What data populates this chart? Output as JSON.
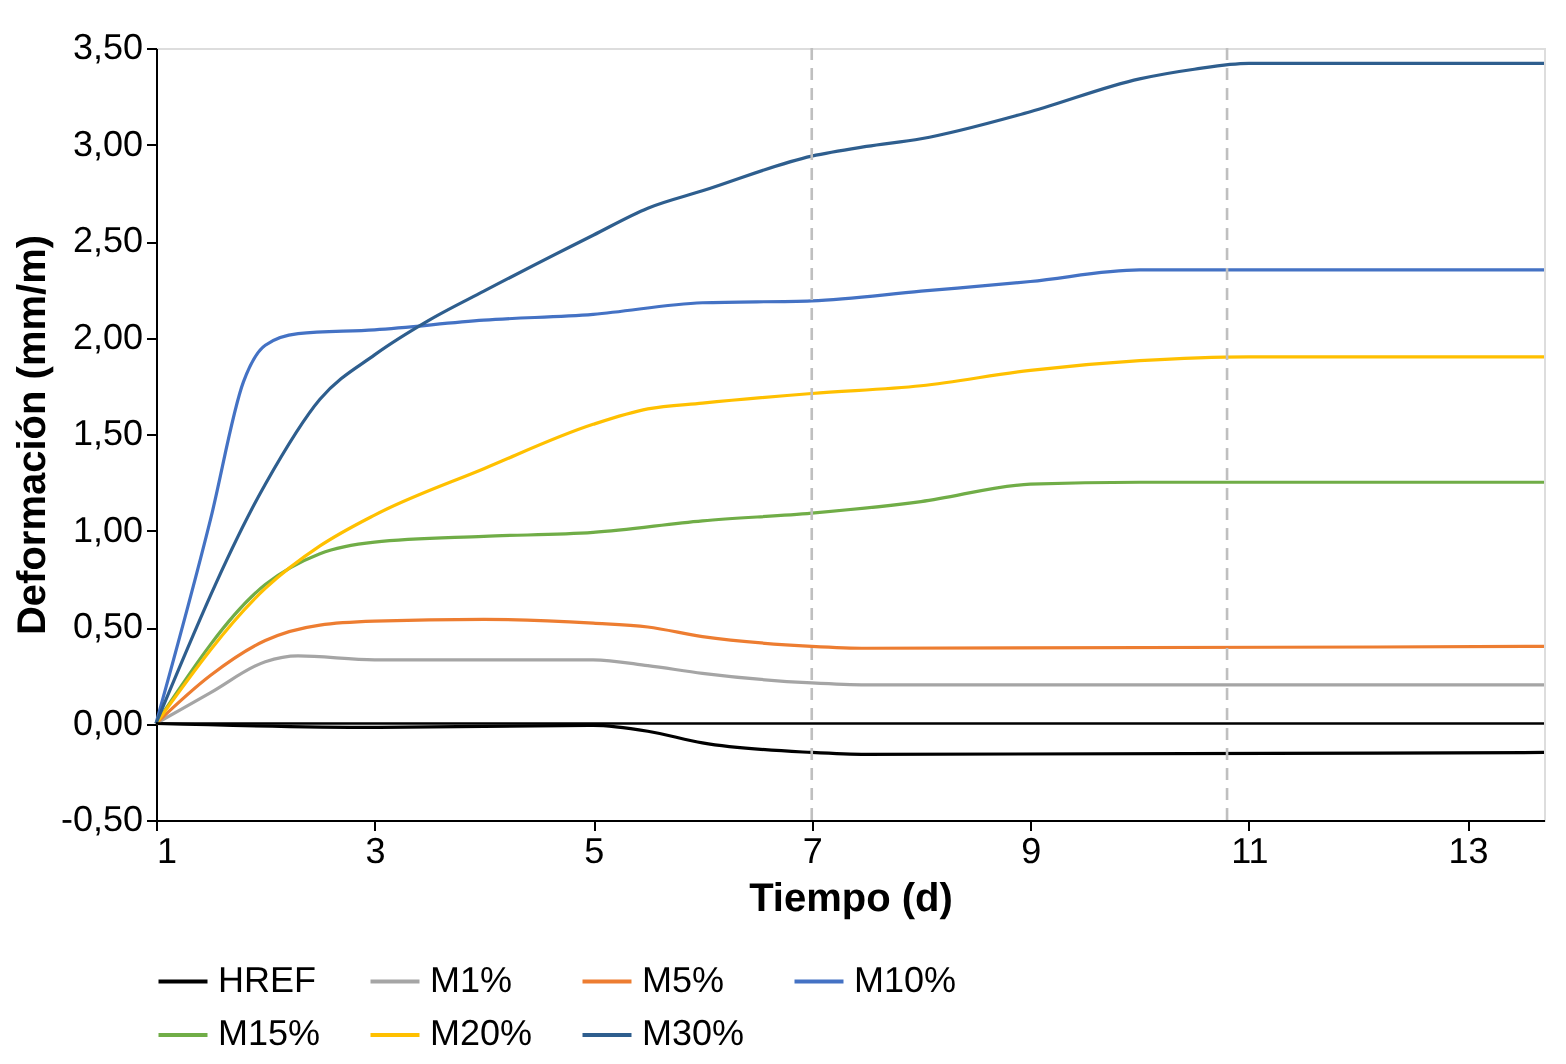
{
  "chart_data": {
    "type": "line",
    "xlabel": "Tiempo (d)",
    "ylabel": "Deformación (mm/m)",
    "xlim": [
      1,
      13.7
    ],
    "xticks": [
      1,
      3,
      5,
      7,
      9,
      11,
      13
    ],
    "ylim": [
      -0.5,
      3.5
    ],
    "yticks": [
      {
        "value": -0.5,
        "label": "-0,50"
      },
      {
        "value": 0,
        "label": "0,00"
      },
      {
        "value": 0.5,
        "label": "0,50"
      },
      {
        "value": 1,
        "label": "1,00"
      },
      {
        "value": 1.5,
        "label": "1,50"
      },
      {
        "value": 2,
        "label": "2,00"
      },
      {
        "value": 2.5,
        "label": "2,50"
      },
      {
        "value": 3,
        "label": "3,00"
      },
      {
        "value": 3.5,
        "label": "3,50"
      }
    ],
    "grid": false,
    "legend": "bottom",
    "marker": "none",
    "line_style": "solid",
    "ref_lines": [
      {
        "axis": "y",
        "value": 0,
        "color": "#000000",
        "line_style": "solid"
      },
      {
        "axis": "x",
        "value": 7,
        "color": "#bfbfbf",
        "line_style": "dashed"
      },
      {
        "axis": "x",
        "value": 10.8,
        "color": "#bfbfbf",
        "line_style": "dashed"
      }
    ],
    "series": [
      {
        "name": "HREF",
        "color": "#000000",
        "x": [
          1,
          3,
          5,
          5.5,
          6,
          7,
          7.5,
          13.7
        ],
        "values": [
          0,
          -0.02,
          -0.01,
          -0.04,
          -0.1,
          -0.15,
          -0.16,
          -0.15
        ]
      },
      {
        "name": "M1%",
        "color": "#a5a5a5",
        "x": [
          1,
          1.5,
          2,
          2.3,
          3,
          5,
          5.5,
          6,
          7,
          7.5,
          13.7
        ],
        "values": [
          0,
          0.16,
          0.32,
          0.35,
          0.33,
          0.33,
          0.3,
          0.26,
          0.21,
          0.2,
          0.2
        ]
      },
      {
        "name": "M5%",
        "color": "#ed7d31",
        "x": [
          1,
          1.5,
          2,
          2.5,
          3,
          4,
          5,
          5.5,
          6,
          7,
          7.5,
          13.7
        ],
        "values": [
          0,
          0.25,
          0.43,
          0.51,
          0.53,
          0.54,
          0.52,
          0.5,
          0.45,
          0.4,
          0.39,
          0.4
        ]
      },
      {
        "name": "M10%",
        "color": "#4472c4",
        "x": [
          1,
          1.5,
          1.8,
          2,
          2.3,
          3,
          4,
          5,
          6,
          7,
          8,
          9,
          10,
          11,
          13.7
        ],
        "values": [
          0,
          1.06,
          1.77,
          1.96,
          2.02,
          2.04,
          2.09,
          2.12,
          2.18,
          2.19,
          2.24,
          2.29,
          2.35,
          2.35,
          2.35
        ]
      },
      {
        "name": "M15%",
        "color": "#70ad47",
        "x": [
          1,
          2,
          2.5,
          3,
          4,
          5,
          6,
          7,
          8,
          9,
          10,
          13.7
        ],
        "values": [
          0,
          0.72,
          0.88,
          0.94,
          0.97,
          0.99,
          1.05,
          1.09,
          1.15,
          1.24,
          1.25,
          1.25
        ]
      },
      {
        "name": "M20%",
        "color": "#ffc000",
        "x": [
          1,
          2,
          2.5,
          3,
          4,
          5,
          5.5,
          6,
          7,
          8,
          9,
          10,
          11,
          13.7
        ],
        "values": [
          0,
          0.7,
          0.92,
          1.08,
          1.32,
          1.55,
          1.63,
          1.66,
          1.71,
          1.75,
          1.83,
          1.88,
          1.9,
          1.9
        ]
      },
      {
        "name": "M30%",
        "color": "#2e5e8e",
        "x": [
          1,
          2,
          2.5,
          3,
          3.5,
          4,
          5,
          5.5,
          6,
          7,
          7.5,
          8,
          9,
          10,
          10.5,
          11,
          12,
          13.7
        ],
        "values": [
          0,
          1.24,
          1.68,
          1.91,
          2.09,
          2.24,
          2.53,
          2.67,
          2.76,
          2.94,
          2.99,
          3.03,
          3.17,
          3.34,
          3.39,
          3.42,
          3.42,
          3.42
        ]
      }
    ]
  }
}
